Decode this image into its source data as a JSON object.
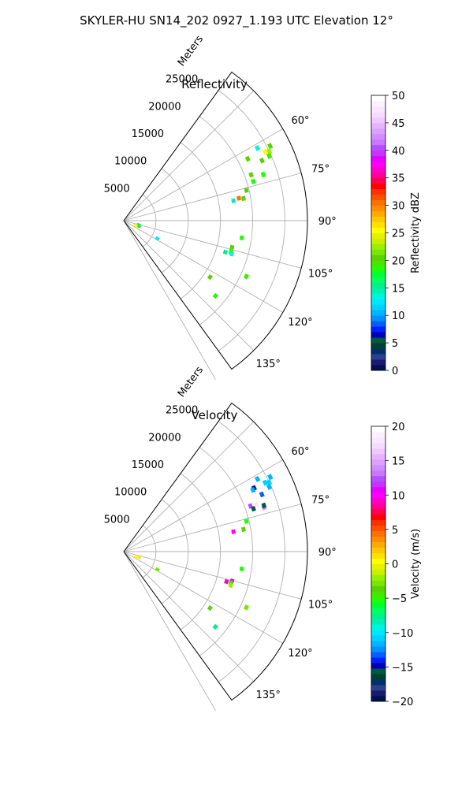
{
  "figure": {
    "title": "SKYLER-HU  SN14_202  0927_1.193 UTC Elevation 12°"
  },
  "chart_data": [
    {
      "type": "polar-sector",
      "title": "Reflectivity",
      "range_label": "Meters",
      "range_ticks": [
        5000,
        10000,
        15000,
        20000,
        25000
      ],
      "range_tick_labels": [
        "5000",
        "10000",
        "15000",
        "20000",
        "25000"
      ],
      "rlim": [
        0,
        28500
      ],
      "azimuth_ticks": [
        60,
        75,
        90,
        105,
        120,
        135
      ],
      "azimuth_tick_labels": [
        "60°",
        "75°",
        "90°",
        "105°",
        "120°",
        "135°"
      ],
      "azimuth_grid": [
        45,
        60,
        75,
        90,
        105,
        120,
        135,
        150
      ],
      "azimuth_range": [
        36,
        144
      ],
      "grid": true,
      "colorbar": {
        "label": "Reflectivity dBZ",
        "range": [
          0,
          50
        ],
        "ticks": [
          0,
          5,
          10,
          15,
          20,
          25,
          30,
          35,
          40,
          45,
          50
        ],
        "tick_labels": [
          "0",
          "5",
          "10",
          "15",
          "20",
          "25",
          "30",
          "35",
          "40",
          "45",
          "50"
        ],
        "colors": [
          "#001050",
          "#1a1a6e",
          "#2e3f8f",
          "#00306a",
          "#004030",
          "#005a40",
          "#0000b4",
          "#0020ff",
          "#0060ff",
          "#0090ff",
          "#00b4ff",
          "#00d2ff",
          "#00e6ff",
          "#00f5e0",
          "#00f0b4",
          "#00f08c",
          "#00ff60",
          "#00ff30",
          "#20ff00",
          "#46e600",
          "#5ad200",
          "#78e600",
          "#96f000",
          "#c8f000",
          "#e6f000",
          "#ffff00",
          "#ffe000",
          "#ffc800",
          "#ffaa00",
          "#ff8c00",
          "#ff7000",
          "#ff5000",
          "#ff3000",
          "#ff0000",
          "#ff0050",
          "#ff0096",
          "#ff00c8",
          "#ff00ff",
          "#e600ff",
          "#c832ff",
          "#b450ff",
          "#c878ff",
          "#d28cff",
          "#dca0ff",
          "#e6b4ff",
          "#f0c8ff",
          "#f5dcff",
          "#fae6ff",
          "#fcf0ff",
          "#ffffff"
        ]
      },
      "echoes": [
        {
          "range_m": 25500,
          "azimuth_deg": 63.0,
          "value": 20
        },
        {
          "range_m": 25000,
          "azimuth_deg": 64.5,
          "value": 22
        },
        {
          "range_m": 24700,
          "azimuth_deg": 66.0,
          "value": 19
        },
        {
          "range_m": 24400,
          "azimuth_deg": 64.0,
          "value": 25
        },
        {
          "range_m": 23600,
          "azimuth_deg": 61.5,
          "value": 13
        },
        {
          "range_m": 23400,
          "azimuth_deg": 66.5,
          "value": 20
        },
        {
          "range_m": 21500,
          "azimuth_deg": 63.5,
          "value": 20
        },
        {
          "range_m": 22800,
          "azimuth_deg": 71.7,
          "value": 18
        },
        {
          "range_m": 21000,
          "azimuth_deg": 70.2,
          "value": 20
        },
        {
          "range_m": 21000,
          "azimuth_deg": 73.2,
          "value": 18
        },
        {
          "range_m": 19600,
          "azimuth_deg": 76.1,
          "value": 20
        },
        {
          "range_m": 18900,
          "azimuth_deg": 79.5,
          "value": 20
        },
        {
          "range_m": 18200,
          "azimuth_deg": 79.0,
          "value": 30
        },
        {
          "range_m": 17300,
          "azimuth_deg": 79.7,
          "value": 14
        },
        {
          "range_m": 2500,
          "azimuth_deg": 111.2,
          "value": 20
        },
        {
          "range_m": 2400,
          "azimuth_deg": 105.0,
          "value": 15
        },
        {
          "range_m": 2000,
          "azimuth_deg": 112.5,
          "value": 25
        },
        {
          "range_m": 5900,
          "azimuth_deg": 118.0,
          "value": 12
        },
        {
          "range_m": 18500,
          "azimuth_deg": 98.3,
          "value": 18
        },
        {
          "range_m": 17300,
          "azimuth_deg": 103.8,
          "value": 20
        },
        {
          "range_m": 16500,
          "azimuth_deg": 107.2,
          "value": 15
        },
        {
          "range_m": 17300,
          "azimuth_deg": 106.2,
          "value": 18
        },
        {
          "range_m": 17500,
          "azimuth_deg": 107.2,
          "value": 13
        },
        {
          "range_m": 20900,
          "azimuth_deg": 114.5,
          "value": 19
        },
        {
          "range_m": 16000,
          "azimuth_deg": 123.2,
          "value": 20
        },
        {
          "range_m": 18400,
          "azimuth_deg": 129.4,
          "value": 18
        }
      ]
    },
    {
      "type": "polar-sector",
      "title": "Velocity",
      "range_label": "Meters",
      "range_ticks": [
        5000,
        10000,
        15000,
        20000,
        25000
      ],
      "range_tick_labels": [
        "5000",
        "10000",
        "15000",
        "20000",
        "25000"
      ],
      "rlim": [
        0,
        28500
      ],
      "azimuth_ticks": [
        60,
        75,
        90,
        105,
        120,
        135
      ],
      "azimuth_tick_labels": [
        "60°",
        "75°",
        "90°",
        "105°",
        "120°",
        "135°"
      ],
      "azimuth_grid": [
        45,
        60,
        75,
        90,
        105,
        120,
        135,
        150
      ],
      "azimuth_range": [
        36,
        144
      ],
      "grid": true,
      "colorbar": {
        "label": "Velocity (m/s)",
        "range": [
          -20,
          20
        ],
        "ticks": [
          -20,
          -15,
          -10,
          -5,
          0,
          5,
          10,
          15,
          20
        ],
        "tick_labels": [
          "−20",
          "−15",
          "−10",
          "−5",
          "0",
          "5",
          "10",
          "15",
          "20"
        ],
        "colors": [
          "#001050",
          "#1a1a6e",
          "#2e3f8f",
          "#00306a",
          "#004030",
          "#005a40",
          "#0000b4",
          "#0020ff",
          "#0060ff",
          "#0090ff",
          "#00b4ff",
          "#00d2ff",
          "#00e6ff",
          "#00f5e0",
          "#00f0b4",
          "#00f08c",
          "#00ff60",
          "#00ff30",
          "#20ff00",
          "#46e600",
          "#5ad200",
          "#78e600",
          "#96f000",
          "#c8f000",
          "#e6f000",
          "#ffff00",
          "#ffe000",
          "#ffc800",
          "#ffaa00",
          "#ff8c00",
          "#ff7000",
          "#ff5000",
          "#ff3000",
          "#ff0000",
          "#ff0050",
          "#ff0096",
          "#ff00c8",
          "#ff00ff",
          "#e600ff",
          "#c832ff",
          "#b450ff",
          "#c878ff",
          "#d28cff",
          "#dca0ff",
          "#e6b4ff",
          "#f0c8ff",
          "#f5dcff",
          "#fae6ff",
          "#fcf0ff",
          "#ffffff"
        ]
      },
      "echoes": [
        {
          "range_m": 25500,
          "azimuth_deg": 63.0,
          "value": -12
        },
        {
          "range_m": 25000,
          "azimuth_deg": 64.5,
          "value": -11
        },
        {
          "range_m": 24700,
          "azimuth_deg": 66.0,
          "value": -12
        },
        {
          "range_m": 24400,
          "azimuth_deg": 64.0,
          "value": -11
        },
        {
          "range_m": 23600,
          "azimuth_deg": 61.5,
          "value": -12
        },
        {
          "range_m": 22500,
          "azimuth_deg": 64.0,
          "value": -15
        },
        {
          "range_m": 22200,
          "azimuth_deg": 64.5,
          "value": -12
        },
        {
          "range_m": 23200,
          "azimuth_deg": 67.5,
          "value": -13
        },
        {
          "range_m": 22800,
          "azimuth_deg": 72.5,
          "value": 14
        },
        {
          "range_m": 22900,
          "azimuth_deg": 71.8,
          "value": -16
        },
        {
          "range_m": 20900,
          "azimuth_deg": 70.2,
          "value": 12
        },
        {
          "range_m": 21200,
          "azimuth_deg": 71.7,
          "value": -16
        },
        {
          "range_m": 21800,
          "azimuth_deg": 70.5,
          "value": 18
        },
        {
          "range_m": 19600,
          "azimuth_deg": 76.1,
          "value": -5
        },
        {
          "range_m": 18900,
          "azimuth_deg": 79.5,
          "value": -4
        },
        {
          "range_m": 17300,
          "azimuth_deg": 79.7,
          "value": 10
        },
        {
          "range_m": 2500,
          "azimuth_deg": 111.2,
          "value": 1
        },
        {
          "range_m": 2100,
          "azimuth_deg": 112.3,
          "value": 0
        },
        {
          "range_m": 5900,
          "azimuth_deg": 118.0,
          "value": -3
        },
        {
          "range_m": 18500,
          "azimuth_deg": 98.3,
          "value": -5
        },
        {
          "range_m": 17400,
          "azimuth_deg": 105.2,
          "value": 11
        },
        {
          "range_m": 16600,
          "azimuth_deg": 106.3,
          "value": 9
        },
        {
          "range_m": 17300,
          "azimuth_deg": 106.2,
          "value": -4
        },
        {
          "range_m": 17400,
          "azimuth_deg": 107.5,
          "value": -2
        },
        {
          "range_m": 20900,
          "azimuth_deg": 114.5,
          "value": -3
        },
        {
          "range_m": 16000,
          "azimuth_deg": 123.2,
          "value": -4
        },
        {
          "range_m": 18400,
          "azimuth_deg": 129.4,
          "value": -8
        }
      ]
    }
  ]
}
